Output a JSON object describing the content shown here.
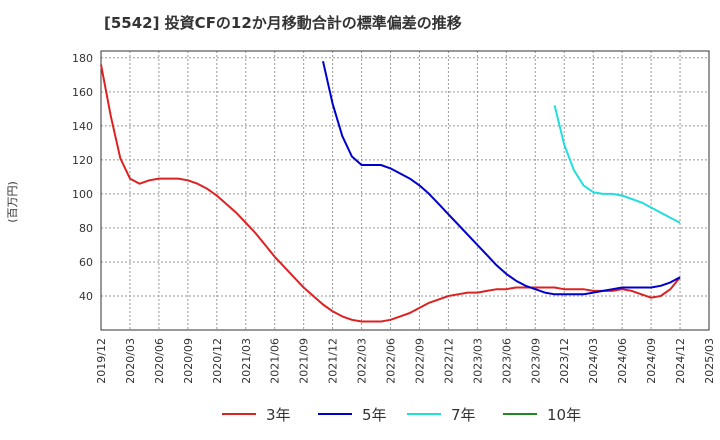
{
  "chart_data": {
    "type": "line",
    "title": "[5542]  投資CFの12か月移動合計の標準偏差の推移",
    "ylabel": "(百万円)",
    "xlabel": "",
    "ylim": [
      20,
      184
    ],
    "yticks": [
      40,
      60,
      80,
      100,
      120,
      140,
      160,
      180
    ],
    "xlim": [
      "2019-12",
      "2025-03"
    ],
    "xticks": [
      "2019/12",
      "2020/03",
      "2020/06",
      "2020/09",
      "2020/12",
      "2021/03",
      "2021/06",
      "2021/09",
      "2021/12",
      "2022/03",
      "2022/06",
      "2022/09",
      "2022/12",
      "2023/03",
      "2023/06",
      "2023/09",
      "2023/12",
      "2024/03",
      "2024/06",
      "2024/09",
      "2024/12",
      "2025/03"
    ],
    "grid": true,
    "legend_position": "bottom",
    "series": [
      {
        "name": "3年",
        "color": "#dd2222",
        "x": [
          "2019-12",
          "2020-01",
          "2020-02",
          "2020-03",
          "2020-04",
          "2020-05",
          "2020-06",
          "2020-07",
          "2020-08",
          "2020-09",
          "2020-10",
          "2020-11",
          "2020-12",
          "2021-01",
          "2021-02",
          "2021-03",
          "2021-04",
          "2021-05",
          "2021-06",
          "2021-07",
          "2021-08",
          "2021-09",
          "2021-10",
          "2021-11",
          "2021-12",
          "2022-01",
          "2022-02",
          "2022-03",
          "2022-04",
          "2022-05",
          "2022-06",
          "2022-07",
          "2022-08",
          "2022-09",
          "2022-10",
          "2022-11",
          "2022-12",
          "2023-01",
          "2023-02",
          "2023-03",
          "2023-04",
          "2023-05",
          "2023-06",
          "2023-07",
          "2023-08",
          "2023-09",
          "2023-10",
          "2023-11",
          "2023-12",
          "2024-01",
          "2024-02",
          "2024-03",
          "2024-04",
          "2024-05",
          "2024-06",
          "2024-07",
          "2024-08",
          "2024-09",
          "2024-10",
          "2024-11",
          "2024-12"
        ],
        "values": [
          176,
          146,
          121,
          109,
          106,
          108,
          109,
          109,
          109,
          108,
          106,
          103,
          99,
          94,
          89,
          83,
          77,
          70,
          63,
          57,
          51,
          45,
          40,
          35,
          31,
          28,
          26,
          25,
          25,
          25,
          26,
          28,
          30,
          33,
          36,
          38,
          40,
          41,
          42,
          42,
          43,
          44,
          44,
          45,
          45,
          45,
          45,
          45,
          44,
          44,
          44,
          43,
          43,
          43,
          44,
          43,
          41,
          39,
          40,
          44,
          51
        ]
      },
      {
        "name": "5年",
        "color": "#0000cc",
        "x": [
          "2021-11",
          "2021-12",
          "2022-01",
          "2022-02",
          "2022-03",
          "2022-04",
          "2022-05",
          "2022-06",
          "2022-07",
          "2022-08",
          "2022-09",
          "2022-10",
          "2022-11",
          "2022-12",
          "2023-01",
          "2023-02",
          "2023-03",
          "2023-04",
          "2023-05",
          "2023-06",
          "2023-07",
          "2023-08",
          "2023-09",
          "2023-10",
          "2023-11",
          "2023-12",
          "2024-01",
          "2024-02",
          "2024-03",
          "2024-04",
          "2024-05",
          "2024-06",
          "2024-07",
          "2024-08",
          "2024-09",
          "2024-10",
          "2024-11",
          "2024-12"
        ],
        "values": [
          178,
          153,
          134,
          122,
          117,
          117,
          117,
          115,
          112,
          109,
          105,
          100,
          94,
          88,
          82,
          76,
          70,
          64,
          58,
          53,
          49,
          46,
          44,
          42,
          41,
          41,
          41,
          41,
          42,
          43,
          44,
          45,
          45,
          45,
          45,
          46,
          48,
          51
        ]
      },
      {
        "name": "7年",
        "color": "#22dddd",
        "x": [
          "2023-11",
          "2023-12",
          "2024-01",
          "2024-02",
          "2024-03",
          "2024-04",
          "2024-05",
          "2024-06",
          "2024-07",
          "2024-08",
          "2024-09",
          "2024-10",
          "2024-11",
          "2024-12"
        ],
        "values": [
          152,
          129,
          114,
          105,
          101,
          100,
          100,
          99,
          97,
          95,
          92,
          89,
          86,
          83
        ]
      },
      {
        "name": "10年",
        "color": "#228822",
        "x": [],
        "values": []
      }
    ]
  }
}
